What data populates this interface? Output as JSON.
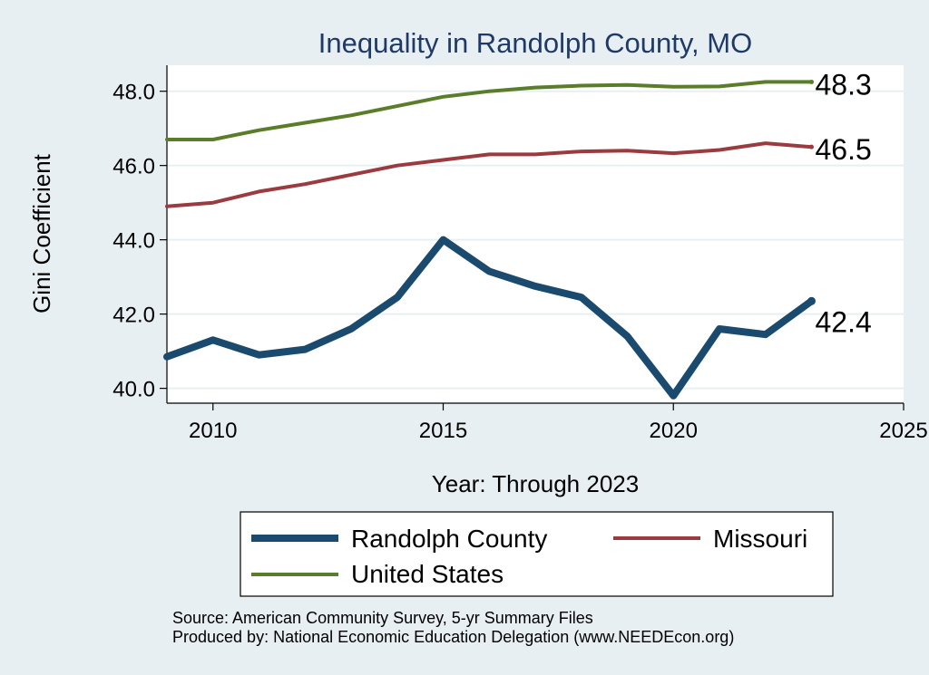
{
  "chart_data": {
    "type": "line",
    "title": "Inequality in Randolph County, MO",
    "xlabel": "Year: Through 2023",
    "ylabel": "Gini Coefficient",
    "xlim": [
      2009,
      2025
    ],
    "ylim": [
      39.6,
      48.7
    ],
    "x_ticks": [
      "2010",
      "2015",
      "2020",
      "2025"
    ],
    "x_tick_values": [
      2010,
      2015,
      2020,
      2025
    ],
    "y_ticks": [
      "40.0",
      "42.0",
      "44.0",
      "46.0",
      "48.0"
    ],
    "y_tick_values": [
      40,
      42,
      44,
      46,
      48
    ],
    "grid": true,
    "x": [
      2009,
      2010,
      2011,
      2012,
      2013,
      2014,
      2015,
      2016,
      2017,
      2018,
      2019,
      2020,
      2021,
      2022,
      2023
    ],
    "series": [
      {
        "name": "Randolph County",
        "color": "#1a4a6e",
        "values": [
          40.85,
          41.3,
          40.9,
          41.05,
          41.6,
          42.45,
          44.0,
          43.15,
          42.75,
          42.45,
          41.4,
          39.8,
          41.6,
          41.45,
          42.35
        ],
        "end_label": "42.4"
      },
      {
        "name": "Missouri",
        "color": "#9b3b40",
        "values": [
          44.9,
          45.0,
          45.3,
          45.5,
          45.75,
          46.0,
          46.15,
          46.3,
          46.3,
          46.38,
          46.4,
          46.33,
          46.42,
          46.6,
          46.5
        ],
        "end_label": "46.5"
      },
      {
        "name": "United States",
        "color": "#5a7d2a",
        "values": [
          46.7,
          46.7,
          46.95,
          47.15,
          47.35,
          47.6,
          47.85,
          48.0,
          48.1,
          48.15,
          48.17,
          48.12,
          48.13,
          48.25,
          48.25
        ],
        "end_label": "48.3"
      }
    ],
    "legend": {
      "position": "bottom-center",
      "entries": [
        "Randolph County",
        "Missouri",
        "United States"
      ]
    },
    "notes": [
      "Source: American Community Survey, 5-yr Summary Files",
      "Produced by: National Economic Education Delegation (www.NEEDEcon.org)"
    ]
  },
  "colors": {
    "background": "#e8eff2",
    "plot_background": "#ffffff",
    "grid": "#e8eff2",
    "title": "#1f3a66"
  }
}
